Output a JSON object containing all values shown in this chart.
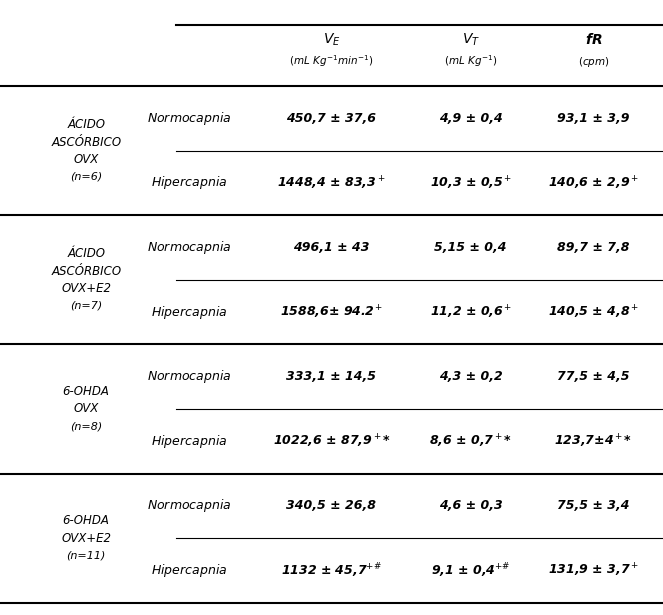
{
  "figsize": [
    6.63,
    6.15
  ],
  "dpi": 100,
  "header_col1": "",
  "header_col2": "",
  "header_col3_line1": "$\\boldsymbol{V_E}$",
  "header_col3_line2": "$(mL\\ Kg^{-1}min^{-1})$",
  "header_col4_line1": "$\\boldsymbol{V_T}$",
  "header_col4_line2": "$(mL\\ Kg^{-1})$",
  "header_col5_line1": "$\\boldsymbol{fR}$",
  "header_col5_line2": "$(cpm)$",
  "groups": [
    {
      "group_line1": "ÁCIDO",
      "group_line2": "ASCÓRBICO",
      "group_line3": "OVX",
      "group_line4": "(n=6)",
      "rows": [
        {
          "condition": "Normocapnia",
          "ve": "450,7 ± 37,6",
          "vt": "4,9 ± 0,4",
          "fr": "93,1 ± 3,9"
        },
        {
          "condition": "Hipercapnia",
          "ve": "1448,4 ± 83,3$^+$",
          "vt": "10,3 ± 0,5$^+$",
          "fr": "140,6 ± 2,9$^+$"
        }
      ]
    },
    {
      "group_line1": "ÁCIDO",
      "group_line2": "ASCÓRBICO",
      "group_line3": "OVX+E2",
      "group_line4": "(n=7)",
      "rows": [
        {
          "condition": "Normocapnia",
          "ve": "496,1 ± 43",
          "vt": "5,15 ± 0,4",
          "fr": "89,7 ± 7,8"
        },
        {
          "condition": "Hipercapnia",
          "ve": "1588,6± 94.2$^+$",
          "vt": "11,2 ± 0,6$^+$",
          "fr": "140,5 ± 4,8$^+$"
        }
      ]
    },
    {
      "group_line1": "6-OHDA",
      "group_line2": "OVX",
      "group_line3": "(n=8)",
      "group_line4": "",
      "rows": [
        {
          "condition": "Normocapnia",
          "ve": "333,1 ± 14,5",
          "vt": "4,3 ± 0,2",
          "fr": "77,5 ± 4,5"
        },
        {
          "condition": "Hipercapnia",
          "ve": "1022,6 ± 87,9$^+$*",
          "vt": "8,6 ± 0,7$^+$*",
          "fr": "123,7±4$^+$*"
        }
      ]
    },
    {
      "group_line1": "6-OHDA",
      "group_line2": "OVX+E2",
      "group_line3": "(n=11)",
      "group_line4": "",
      "rows": [
        {
          "condition": "Normocapnia",
          "ve": "340,5 ± 26,8",
          "vt": "4,6 ± 0,3",
          "fr": "75,5 ± 3,4"
        },
        {
          "condition": "Hipercapnia",
          "ve": "1132 ± 45,7$^{+\\#}$",
          "vt": "9,1 ± 0,4$^{+\\#}$",
          "fr": "131,9 ± 3,7$^+$"
        }
      ]
    }
  ],
  "background_color": "#ffffff",
  "text_color": "#000000",
  "line_color": "#000000"
}
